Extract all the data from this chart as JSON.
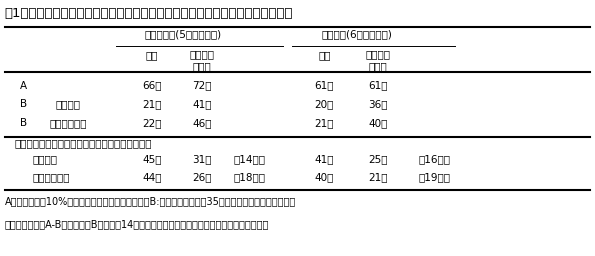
{
  "title": "表1　イヌビエとオオイヌタデの除草必要期間とリビングマルチによる短縮日数",
  "header1_std": "標準期栽培(5月下旬播種)",
  "header1_late": "晩播栽培(6月上旬播種)",
  "header2_kan": "慣行",
  "header2_lm": "リビング\nマルチ",
  "row_A": [
    "A",
    "",
    "66日",
    "72日",
    "",
    "61日",
    "61日",
    ""
  ],
  "row_B1": [
    "B",
    "イヌビエ",
    "21日",
    "41日",
    "",
    "20日",
    "36日",
    ""
  ],
  "row_B2": [
    "B",
    "オオイヌタデ",
    "22日",
    "46日",
    "",
    "21日",
    "40日",
    ""
  ],
  "section_label": "除草必要期間（リビングマルチによる短縮日数）",
  "row_inu": [
    "イヌビエ",
    "45日",
    "31日",
    "（14日）",
    "41日",
    "25日",
    "（16日）"
  ],
  "row_ooi": [
    "オオイヌタデ",
    "44日",
    "26日",
    "（18日）",
    "40日",
    "21日",
    "（19日）"
  ],
  "footnote1": "A：相対照度が10%以下になる作物の播種後日数．B:雑草の草丈が高さ35㎝に達するのに要する日数．",
  "footnote2": "除草必要期間：A-B　（なお，Bは播種後14日目に移植した雑草の伸長速度を用いて算出した）",
  "bg_color": "#ffffff",
  "text_color": "#000000",
  "font_size": 7.5,
  "title_font_size": 9.5
}
